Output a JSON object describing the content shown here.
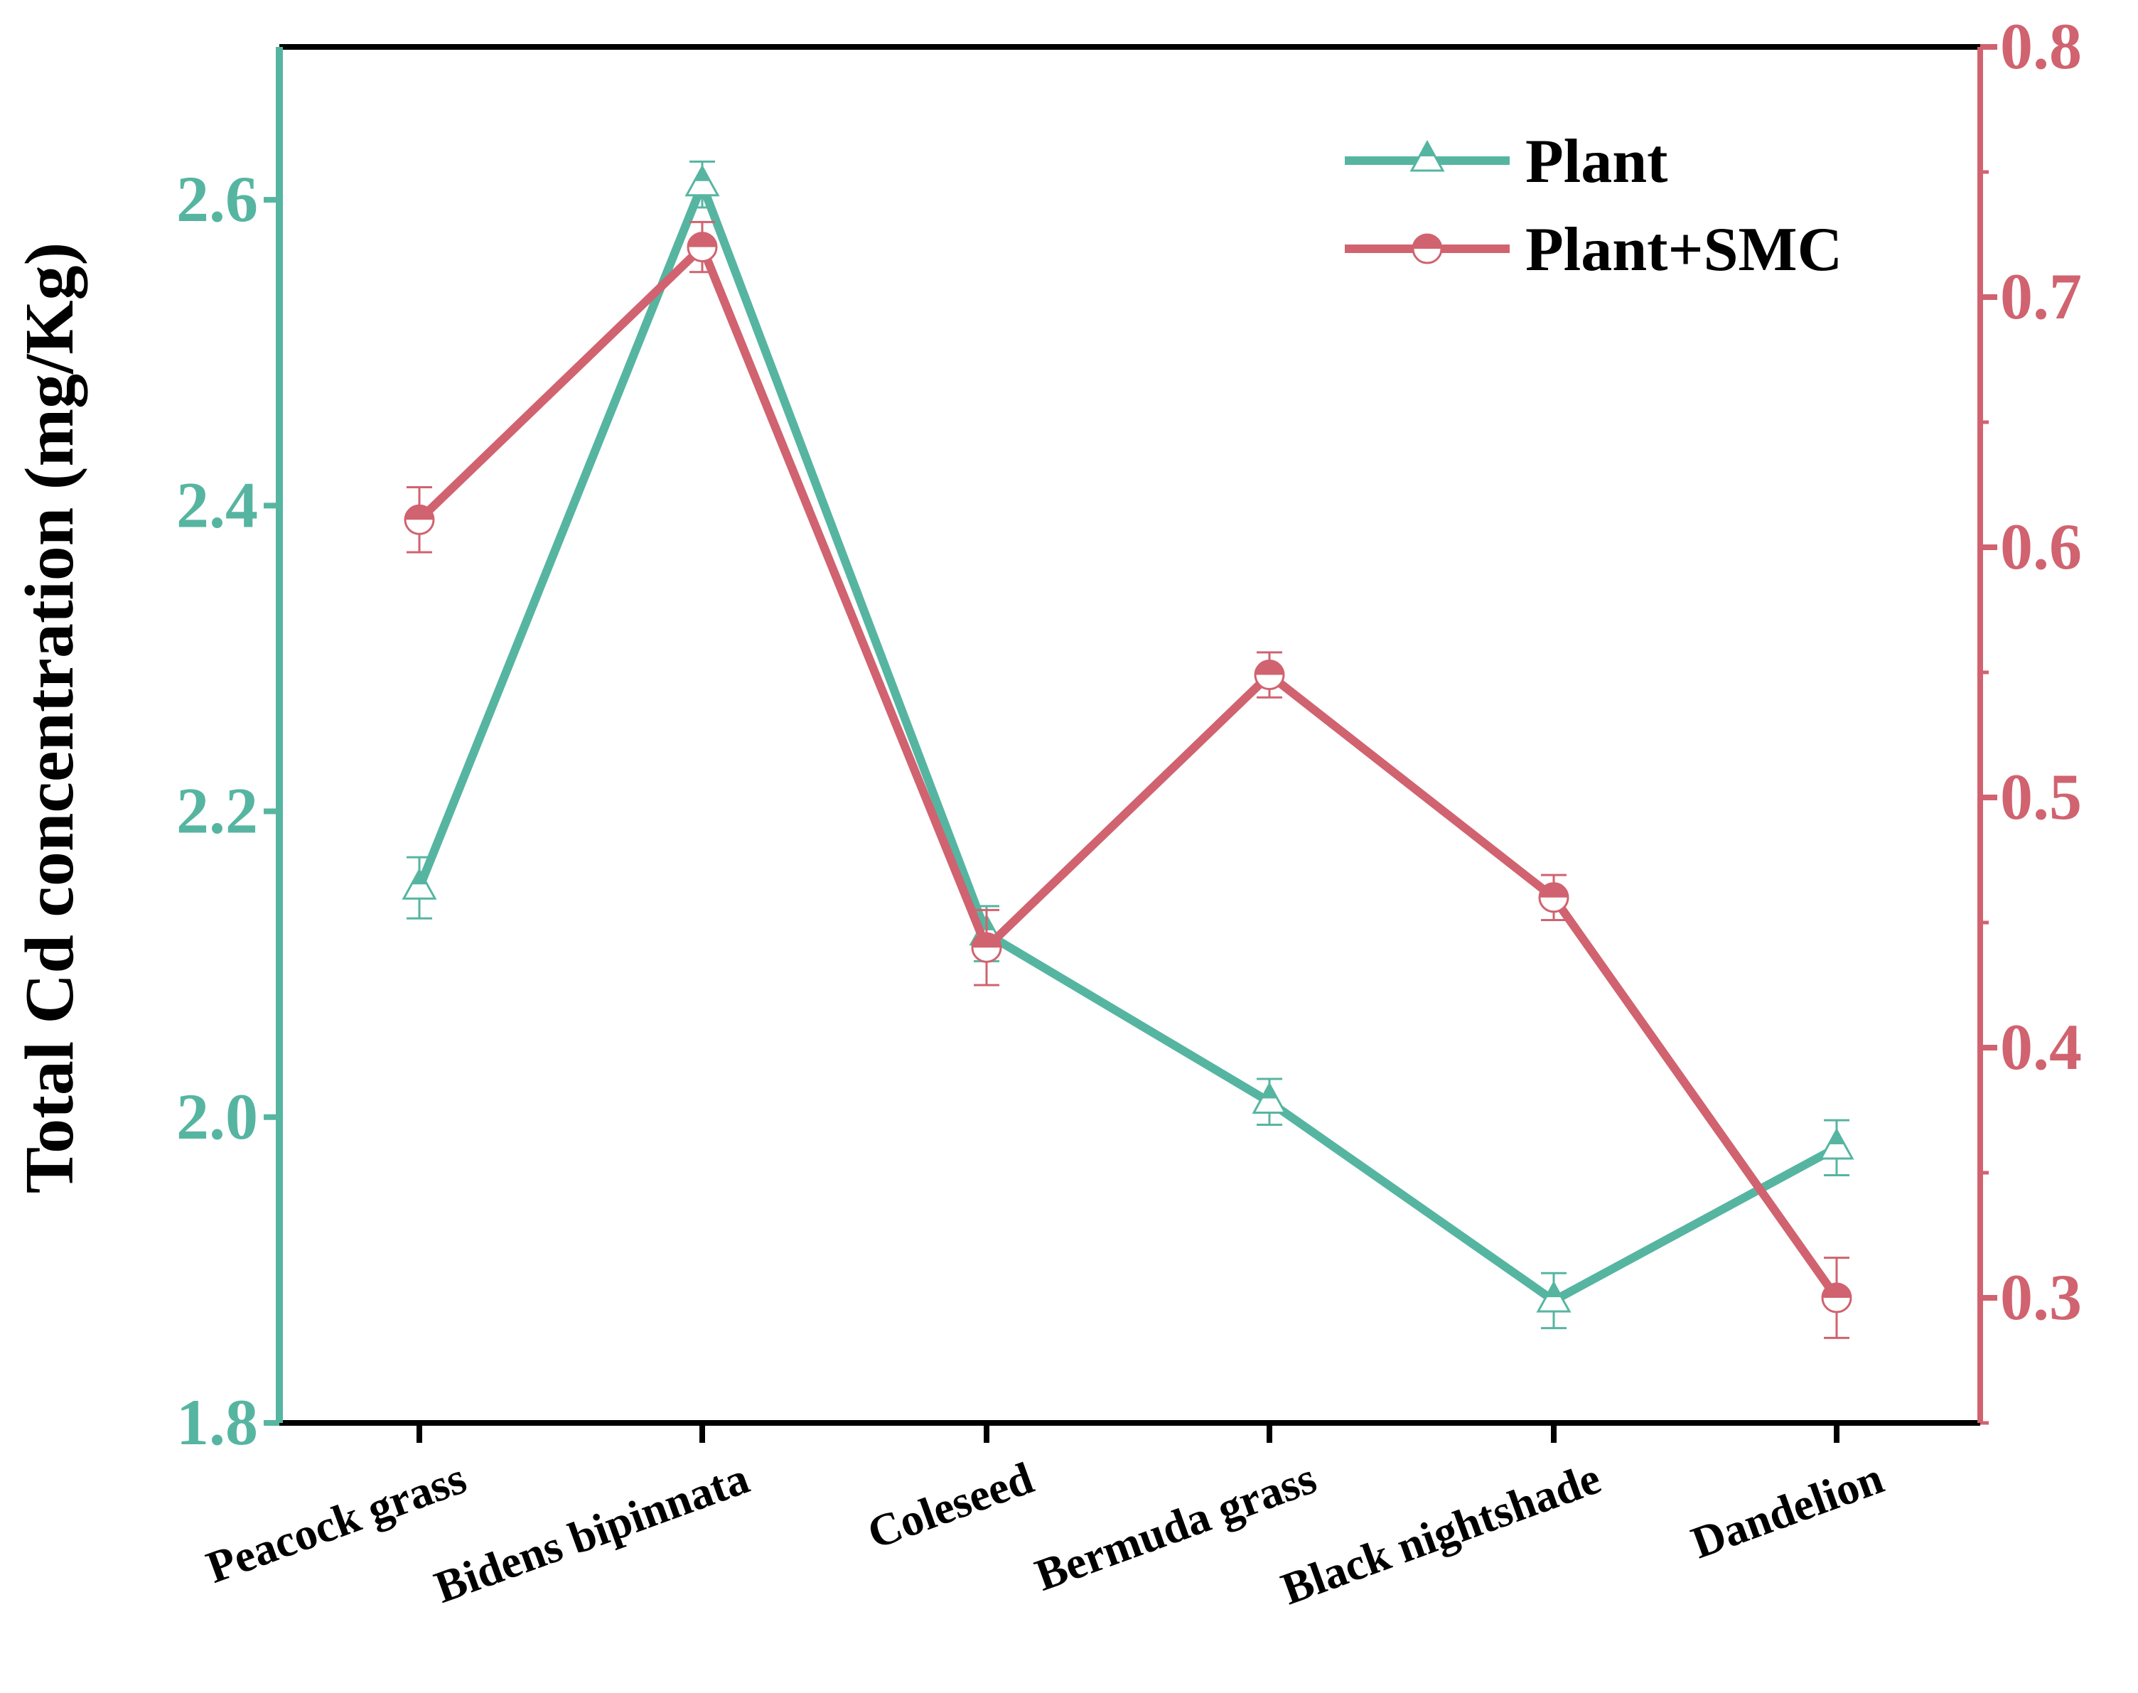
{
  "chart_data": {
    "type": "line",
    "title": "",
    "categories": [
      "Peacock grass",
      "Bidens bipinnata",
      "Coleseed",
      "Bermuda grass",
      "Black nightshade",
      "Dandelion"
    ],
    "ylabel": "Total Cd concentration (mg/Kg)",
    "ylabel_right": "",
    "left_axis": {
      "ylim": [
        1.8,
        2.7
      ],
      "ticks": [
        "1.8",
        "2.0",
        "2.2",
        "2.4",
        "2.6"
      ]
    },
    "right_axis": {
      "ylim": [
        0.25,
        0.8
      ],
      "ticks": [
        "0.3",
        "0.4",
        "0.5",
        "0.6",
        "0.7",
        "0.8"
      ]
    },
    "series": [
      {
        "name": "Plant",
        "axis": "left",
        "marker": "triangle",
        "values": [
          2.15,
          2.61,
          2.12,
          2.01,
          1.88,
          1.98
        ],
        "errors": [
          0.02,
          0.015,
          0.018,
          0.015,
          0.018,
          0.018
        ]
      },
      {
        "name": "Plant+SMC",
        "axis": "right",
        "marker": "circle",
        "values": [
          0.611,
          0.72,
          0.44,
          0.549,
          0.46,
          0.3
        ],
        "errors": [
          0.013,
          0.01,
          0.015,
          0.009,
          0.009,
          0.016
        ]
      }
    ],
    "legend": {
      "position": "top-right",
      "entries": [
        "Plant",
        "Plant+SMC"
      ]
    },
    "colors": {
      "plant": "#56b5a1",
      "smc": "#d0636f",
      "axis": "#000000"
    },
    "grid": false
  }
}
